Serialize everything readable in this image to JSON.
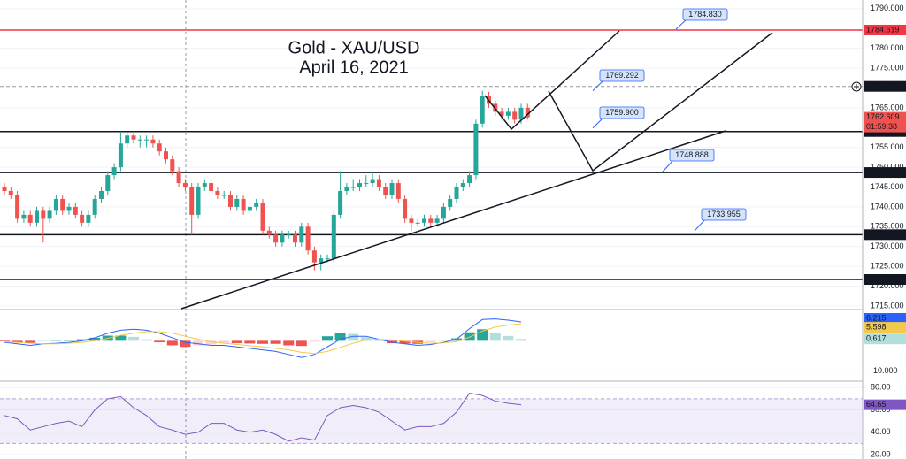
{
  "chart_data": {
    "type": "candlestick",
    "title": "Gold - XAU/USD",
    "subtitle": "April 16, 2021",
    "up_color": "#26a69a",
    "down_color": "#ef5350",
    "ylim": [
      1714.1,
      1792.2
    ],
    "yticks": [
      {
        "value": 1790,
        "label": "1790.000"
      },
      {
        "value": 1780,
        "label": "1780.000"
      },
      {
        "value": 1775,
        "label": "1775.000"
      },
      {
        "value": 1765,
        "label": "1765.000"
      },
      {
        "value": 1755,
        "label": "1755.000"
      },
      {
        "value": 1750,
        "label": "1750.000"
      },
      {
        "value": 1745,
        "label": "1745.000"
      },
      {
        "value": 1740,
        "label": "1740.000"
      },
      {
        "value": 1735,
        "label": "1735.000"
      },
      {
        "value": 1730,
        "label": "1730.000"
      },
      {
        "value": 1725,
        "label": "1725.000"
      },
      {
        "value": 1720,
        "label": "1720.000"
      },
      {
        "value": 1715,
        "label": "1715.000"
      }
    ],
    "candles": [
      [
        1745,
        1746,
        1743,
        1744
      ],
      [
        1744,
        1745,
        1742,
        1743
      ],
      [
        1743,
        1744,
        1736,
        1737
      ],
      [
        1737,
        1739,
        1736,
        1738
      ],
      [
        1738,
        1739,
        1735,
        1736
      ],
      [
        1736,
        1740,
        1735,
        1739
      ],
      [
        1739,
        1740,
        1731,
        1737
      ],
      [
        1737,
        1740,
        1736,
        1739
      ],
      [
        1739,
        1743,
        1738,
        1742
      ],
      [
        1742,
        1743,
        1738,
        1739
      ],
      [
        1739,
        1741,
        1738,
        1740
      ],
      [
        1740,
        1741,
        1737,
        1738
      ],
      [
        1738,
        1739,
        1735,
        1736
      ],
      [
        1736,
        1739,
        1735,
        1738
      ],
      [
        1738,
        1743,
        1737,
        1742
      ],
      [
        1742,
        1745,
        1741,
        1744
      ],
      [
        1744,
        1749,
        1743,
        1748
      ],
      [
        1748,
        1751,
        1747,
        1750
      ],
      [
        1750,
        1759,
        1749,
        1756
      ],
      [
        1756,
        1759,
        1755,
        1758
      ],
      [
        1758,
        1759,
        1756,
        1757
      ],
      [
        1757,
        1758,
        1755,
        1757
      ],
      [
        1757,
        1758,
        1755,
        1757
      ],
      [
        1757,
        1758,
        1755,
        1756
      ],
      [
        1756,
        1757,
        1753,
        1754
      ],
      [
        1754,
        1755,
        1751,
        1752
      ],
      [
        1752,
        1753,
        1748,
        1749
      ],
      [
        1749,
        1750,
        1745,
        1746
      ],
      [
        1746,
        1747,
        1744,
        1745
      ],
      [
        1745,
        1746,
        1733,
        1738
      ],
      [
        1738,
        1746,
        1737,
        1745
      ],
      [
        1745,
        1747,
        1744,
        1746
      ],
      [
        1746,
        1747,
        1743,
        1744
      ],
      [
        1744,
        1745,
        1742,
        1743
      ],
      [
        1743,
        1744,
        1742,
        1743
      ],
      [
        1743,
        1744,
        1739,
        1740
      ],
      [
        1740,
        1743,
        1739,
        1742
      ],
      [
        1742,
        1743,
        1738,
        1739
      ],
      [
        1739,
        1741,
        1738,
        1740
      ],
      [
        1740,
        1742,
        1739,
        1741
      ],
      [
        1741,
        1742,
        1733,
        1734
      ],
      [
        1734,
        1735,
        1732,
        1733
      ],
      [
        1733,
        1734,
        1730,
        1731
      ],
      [
        1731,
        1734,
        1730,
        1733
      ],
      [
        1733,
        1734,
        1732,
        1733
      ],
      [
        1733,
        1734,
        1730,
        1731
      ],
      [
        1731,
        1736,
        1730,
        1735
      ],
      [
        1735,
        1736,
        1728,
        1729
      ],
      [
        1729,
        1730,
        1724,
        1726
      ],
      [
        1726,
        1728,
        1724,
        1727
      ],
      [
        1727,
        1728,
        1726,
        1727
      ],
      [
        1727,
        1739,
        1726,
        1738
      ],
      [
        1738,
        1749,
        1737,
        1744
      ],
      [
        1744,
        1746,
        1743,
        1745
      ],
      [
        1745,
        1747,
        1744,
        1745
      ],
      [
        1745,
        1747,
        1744,
        1746
      ],
      [
        1746,
        1748,
        1745,
        1746
      ],
      [
        1746,
        1749,
        1745,
        1747
      ],
      [
        1747,
        1748,
        1744,
        1745
      ],
      [
        1745,
        1746,
        1742,
        1743
      ],
      [
        1743,
        1747,
        1742,
        1746
      ],
      [
        1746,
        1747,
        1741,
        1742
      ],
      [
        1742,
        1743,
        1736,
        1737
      ],
      [
        1737,
        1738,
        1734,
        1736
      ],
      [
        1736,
        1737,
        1735,
        1736
      ],
      [
        1736,
        1738,
        1735,
        1737
      ],
      [
        1737,
        1738,
        1735,
        1736
      ],
      [
        1736,
        1738,
        1735,
        1737
      ],
      [
        1737,
        1741,
        1736,
        1740
      ],
      [
        1740,
        1743,
        1739,
        1742
      ],
      [
        1742,
        1746,
        1741,
        1745
      ],
      [
        1745,
        1747,
        1744,
        1746
      ],
      [
        1746,
        1749,
        1745,
        1748
      ],
      [
        1748,
        1762,
        1747,
        1761
      ],
      [
        1761,
        1769.3,
        1760,
        1768
      ],
      [
        1768,
        1769,
        1765,
        1766
      ],
      [
        1766,
        1767,
        1763,
        1764
      ],
      [
        1764,
        1765,
        1762,
        1763
      ],
      [
        1763,
        1765,
        1762,
        1764
      ],
      [
        1764,
        1765,
        1761,
        1762
      ],
      [
        1762,
        1766,
        1761,
        1765
      ],
      [
        1765,
        1766,
        1762,
        1762.609
      ]
    ],
    "countdown": "01:59:38",
    "levels": [
      {
        "value": 1784.619,
        "color": "#f23645",
        "style": "solid"
      },
      {
        "value": 1770.399,
        "color": "#9598a1",
        "style": "dashed"
      },
      {
        "value": 1759.015,
        "color": "#131722",
        "style": "solid"
      },
      {
        "value": 1748.672,
        "color": "#131722",
        "style": "solid"
      },
      {
        "value": 1732.997,
        "color": "#131722",
        "style": "solid"
      },
      {
        "value": 1721.686,
        "color": "#131722",
        "style": "solid"
      }
    ],
    "annotations": [
      {
        "value": 1784.83,
        "label": "1784.830"
      },
      {
        "value": 1769.292
      },
      {
        "value": 1759.9,
        "label": "1759.900"
      },
      {
        "value": 1748.888
      },
      {
        "value": 1733.955
      }
    ],
    "macd": {
      "ylim": [
        -13,
        10
      ],
      "yticks": [
        {
          "value": -10,
          "label": "-10.000"
        }
      ],
      "macd_color": "#2962ff",
      "signal_color": "#f2c94c",
      "macd": [
        -0.5,
        -1,
        -1.5,
        -1,
        -0.8,
        -0.5,
        0,
        1,
        2.5,
        3.5,
        3.8,
        3.5,
        2.5,
        1,
        -0.5,
        -1,
        -1.5,
        -1.5,
        -2,
        -2.5,
        -3,
        -3.5,
        -4.5,
        -5.5,
        -4.5,
        -2,
        0.5,
        1.5,
        1.5,
        0.5,
        -0.5,
        -1,
        -1.5,
        -1.2,
        -0.5,
        0.5,
        4,
        7,
        7.2,
        6.8,
        6.215
      ],
      "signal": [
        -0.3,
        -0.5,
        -0.8,
        -1,
        -1,
        -0.8,
        -0.5,
        0,
        0.8,
        1.8,
        2.5,
        3,
        3,
        2.5,
        1.5,
        0.5,
        -0.3,
        -0.8,
        -1.2,
        -1.6,
        -2,
        -2.5,
        -3,
        -3.8,
        -4.2,
        -3.5,
        -2.2,
        -0.8,
        0.3,
        0.5,
        0.3,
        -0.1,
        -0.5,
        -0.8,
        -0.7,
        -0.3,
        1.2,
        3.2,
        4.5,
        5.2,
        5.598
      ],
      "histogram": [
        -0.2,
        -0.5,
        -0.7,
        0,
        0.2,
        0.3,
        0.5,
        1,
        1.7,
        1.7,
        1.3,
        0.5,
        -0.5,
        -1.5,
        -2,
        -1.5,
        -1.2,
        -0.7,
        -0.8,
        -0.9,
        -1,
        -1,
        -1.5,
        -1.7,
        -0.3,
        1.5,
        2.7,
        2.3,
        1.2,
        0,
        -0.8,
        -0.9,
        -1,
        -0.4,
        0.2,
        0.8,
        2.8,
        3.8,
        2.7,
        1.6,
        0.617
      ]
    },
    "rsi": {
      "ylim": [
        16,
        85
      ],
      "yticks": [
        {
          "value": 80,
          "label": "80.00"
        },
        {
          "value": 60,
          "label": "60.00"
        },
        {
          "value": 40,
          "label": "40.00"
        },
        {
          "value": 20,
          "label": "20.00"
        }
      ],
      "band": [
        30,
        70
      ],
      "color": "#7e57c2",
      "values": [
        55,
        52,
        42,
        45,
        48,
        50,
        45,
        60,
        70,
        72,
        62,
        55,
        45,
        42,
        38,
        40,
        48,
        48,
        42,
        40,
        42,
        38,
        32,
        35,
        33,
        55,
        62,
        64,
        62,
        58,
        50,
        42,
        45,
        45,
        48,
        58,
        75,
        73,
        68,
        66,
        64.65
      ]
    }
  }
}
